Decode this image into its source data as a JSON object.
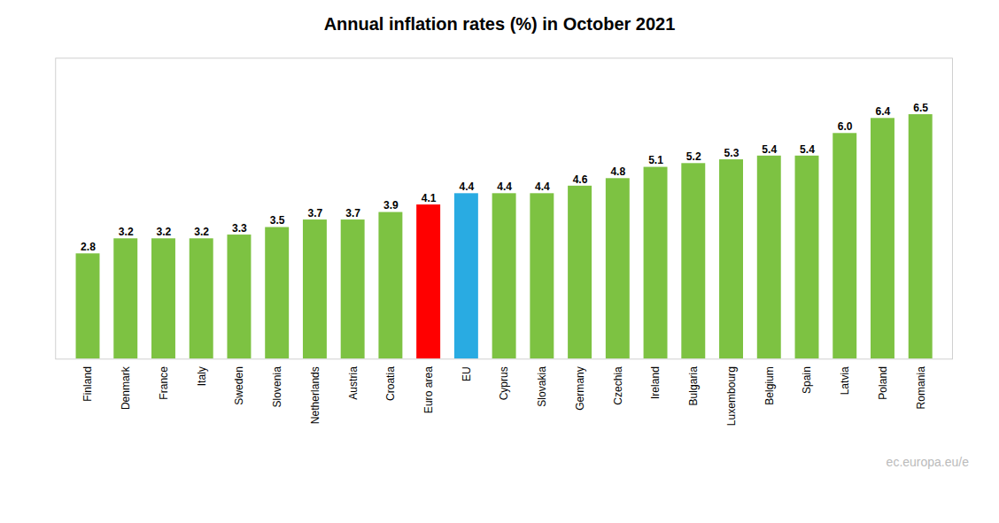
{
  "chart_data": {
    "type": "bar",
    "title": "Annual inflation rates (%) in October 2021",
    "categories": [
      "Finland",
      "Denmark",
      "France",
      "Italy",
      "Sweden",
      "Slovenia",
      "Netherlands",
      "Austria",
      "Croatia",
      "Euro area",
      "EU",
      "Cyprus",
      "Slovakia",
      "Germany",
      "Czechia",
      "Ireland",
      "Bulgaria",
      "Luxembourg",
      "Belgium",
      "Spain",
      "Latvia",
      "Poland",
      "Romania"
    ],
    "values": [
      2.8,
      3.2,
      3.2,
      3.2,
      3.3,
      3.5,
      3.7,
      3.7,
      3.9,
      4.1,
      4.4,
      4.4,
      4.4,
      4.6,
      4.8,
      5.1,
      5.2,
      5.3,
      5.4,
      5.4,
      6.0,
      6.4,
      6.5
    ],
    "value_labels": [
      "2.8",
      "3.2",
      "3.2",
      "3.2",
      "3.3",
      "3.5",
      "3.7",
      "3.7",
      "3.9",
      "4.1",
      "4.4",
      "4.4",
      "4.4",
      "4.6",
      "4.8",
      "5.1",
      "5.2",
      "5.3",
      "5.4",
      "5.4",
      "6.0",
      "6.4",
      "6.5"
    ],
    "colors": [
      "#7dc242",
      "#7dc242",
      "#7dc242",
      "#7dc242",
      "#7dc242",
      "#7dc242",
      "#7dc242",
      "#7dc242",
      "#7dc242",
      "#ff0000",
      "#29abe2",
      "#7dc242",
      "#7dc242",
      "#7dc242",
      "#7dc242",
      "#7dc242",
      "#7dc242",
      "#7dc242",
      "#7dc242",
      "#7dc242",
      "#7dc242",
      "#7dc242",
      "#7dc242"
    ],
    "ylim": [
      0,
      8.0
    ],
    "grid": false,
    "data_labels": true,
    "tick_labels": "x",
    "annotations": [
      "ec.europa.eu/e"
    ]
  }
}
